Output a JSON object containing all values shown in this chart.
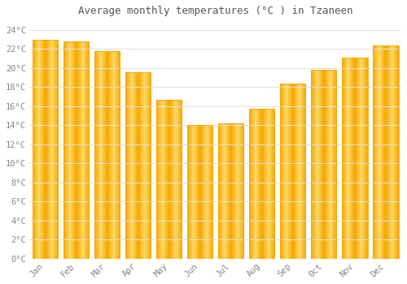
{
  "title": "Average monthly temperatures (°C ) in Tzaneen",
  "months": [
    "Jan",
    "Feb",
    "Mar",
    "Apr",
    "May",
    "Jun",
    "Jul",
    "Aug",
    "Sep",
    "Oct",
    "Nov",
    "Dec"
  ],
  "values": [
    23.0,
    22.8,
    21.8,
    19.6,
    16.7,
    14.0,
    14.2,
    15.7,
    18.4,
    19.8,
    21.1,
    22.4
  ],
  "bar_color_center": "#FFD966",
  "bar_color_edge": "#F5A800",
  "background_color": "#FFFFFF",
  "grid_color": "#E0E0E0",
  "title_color": "#555555",
  "tick_color": "#888888",
  "ylim": [
    0,
    25
  ],
  "ytick_step": 2,
  "bar_width": 0.82
}
